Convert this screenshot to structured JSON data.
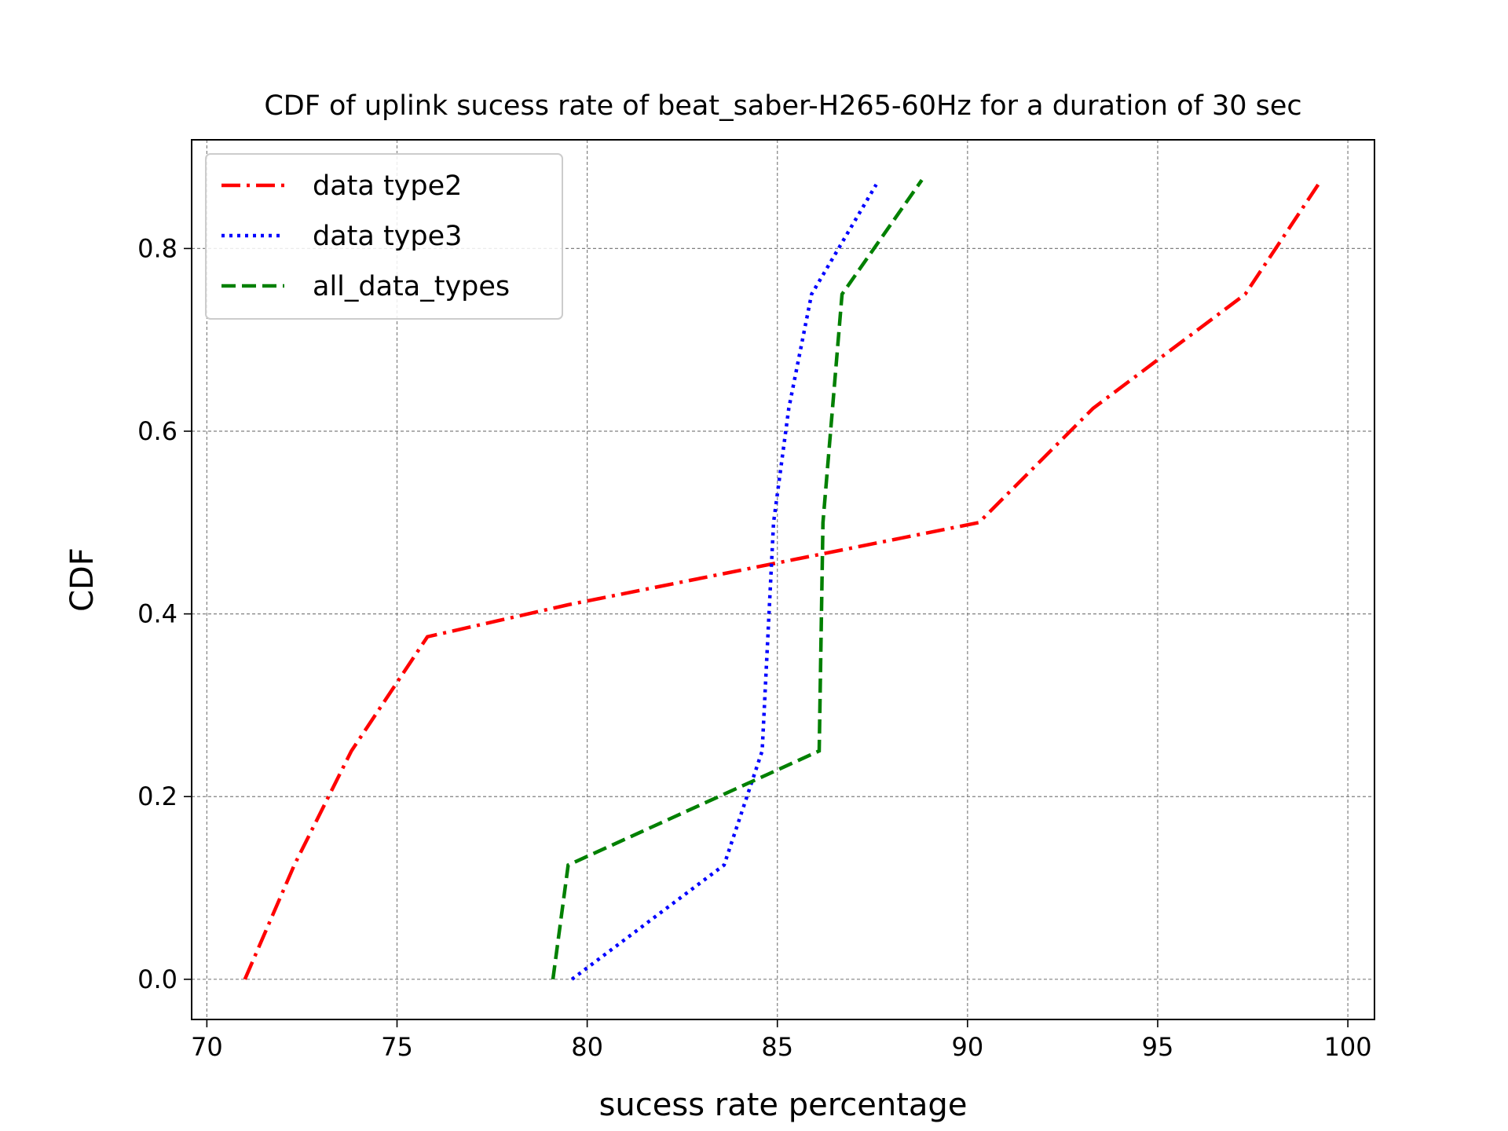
{
  "chart_data": {
    "type": "line",
    "title": "CDF of uplink sucess rate of beat_saber-H265-60Hz for a duration of 30 sec",
    "xlabel": "sucess rate percentage",
    "ylabel": "CDF",
    "xlim": [
      69.6,
      100.7
    ],
    "ylim": [
      -0.044,
      0.919
    ],
    "xticks": [
      70,
      75,
      80,
      85,
      90,
      95,
      100
    ],
    "yticks": [
      0.0,
      0.2,
      0.4,
      0.6,
      0.8
    ],
    "grid": true,
    "legend_position": "top-left",
    "series": [
      {
        "name": "data type2",
        "color": "#ff0000",
        "style": "dashdot",
        "x": [
          71.0,
          72.3,
          73.8,
          75.8,
          79.5,
          90.3,
          93.3,
          97.3,
          99.3
        ],
        "y": [
          0.0,
          0.125,
          0.25,
          0.375,
          0.41,
          0.5,
          0.625,
          0.75,
          0.875
        ]
      },
      {
        "name": "data type3",
        "color": "#0000ff",
        "style": "dotted",
        "x": [
          79.6,
          83.6,
          84.6,
          84.9,
          85.3,
          85.9,
          87.6
        ],
        "y": [
          0.0,
          0.125,
          0.25,
          0.5,
          0.625,
          0.75,
          0.87
        ]
      },
      {
        "name": "all_data_types",
        "color": "#008000",
        "style": "dashed",
        "x": [
          79.1,
          79.5,
          86.1,
          86.2,
          86.7,
          88.8
        ],
        "y": [
          0.0,
          0.125,
          0.25,
          0.5,
          0.75,
          0.875
        ]
      }
    ]
  }
}
